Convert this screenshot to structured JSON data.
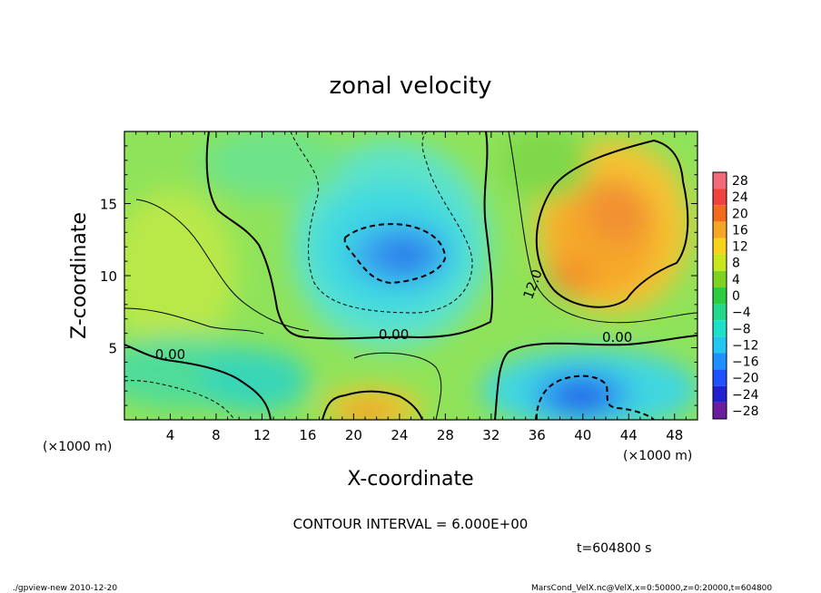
{
  "chart_data": {
    "type": "heatmap",
    "title": "zonal velocity",
    "xlabel": "X-coordinate",
    "ylabel": "Z-coordinate",
    "x_unit_label": "(×1000 m)",
    "y_unit_label": "(×1000 m)",
    "xlim": [
      0,
      50
    ],
    "ylim": [
      0,
      20
    ],
    "x_ticks": [
      4,
      8,
      12,
      16,
      20,
      24,
      28,
      32,
      36,
      40,
      44,
      48
    ],
    "y_ticks": [
      5,
      10,
      15
    ],
    "contour_interval_text": "CONTOUR INTERVAL = 6.000E+00",
    "contour_labels": [
      {
        "text": "0.00",
        "x": 4.0,
        "z": 4.2
      },
      {
        "text": "0.00",
        "x": 23.5,
        "z": 5.6
      },
      {
        "text": "0.00",
        "x": 43.0,
        "z": 5.4
      },
      {
        "text": "12.0",
        "x": 36.0,
        "z": 9.3
      }
    ],
    "colorbar": {
      "levels": [
        28,
        24,
        20,
        16,
        12,
        8,
        4,
        0,
        -4,
        -8,
        -12,
        -16,
        -20,
        -24,
        -28
      ],
      "colors": [
        "#f26a7a",
        "#f04040",
        "#f26a1e",
        "#f5a623",
        "#f8d21c",
        "#c8e61e",
        "#7ed321",
        "#2ecc40",
        "#22d88a",
        "#1ee0c8",
        "#20c8f0",
        "#1e90ff",
        "#2050ff",
        "#2020d0",
        "#6a1e9e"
      ]
    },
    "extrema": [
      {
        "name": "negative core",
        "x": 23,
        "z": 11.5,
        "value": -12
      },
      {
        "name": "positive core",
        "x": 42,
        "z": 12.5,
        "value": 16
      },
      {
        "name": "positive bottom",
        "x": 23,
        "z": 1.2,
        "value": 12
      },
      {
        "name": "negative bottom",
        "x": 40,
        "z": 2,
        "value": -16
      }
    ]
  },
  "time_label": "t=604800 s",
  "footer_left": "./gpview-new  2010-12-20",
  "footer_right": "MarsCond_VelX.nc@VelX,x=0:50000,z=0:20000,t=604800"
}
